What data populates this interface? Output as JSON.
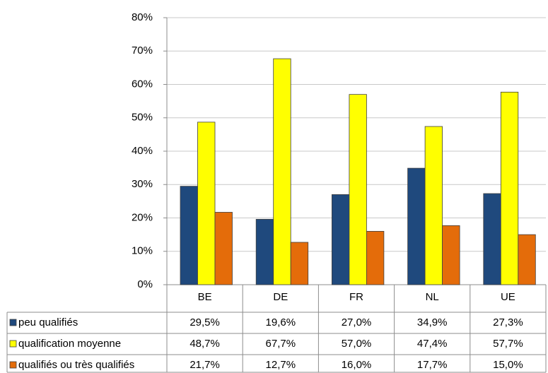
{
  "chart_data": {
    "type": "bar",
    "categories": [
      "BE",
      "DE",
      "FR",
      "NL",
      "UE"
    ],
    "series": [
      {
        "name": "peu qualifiés",
        "color": "#1f497d",
        "values": [
          29.5,
          19.6,
          27.0,
          34.9,
          27.3
        ],
        "value_labels": [
          "29,5%",
          "19,6%",
          "27,0%",
          "34,9%",
          "27,3%"
        ]
      },
      {
        "name": "qualification moyenne",
        "color": "#ffff00",
        "values": [
          48.7,
          67.7,
          57.0,
          47.4,
          57.7
        ],
        "value_labels": [
          "48,7%",
          "67,7%",
          "57,0%",
          "47,4%",
          "57,7%"
        ]
      },
      {
        "name": "qualifiés ou très qualifiés",
        "color": "#e46c0a",
        "values": [
          21.7,
          12.7,
          16.0,
          17.7,
          15.0
        ],
        "value_labels": [
          "21,7%",
          "12,7%",
          "16,0%",
          "17,7%",
          "15,0%"
        ]
      }
    ],
    "ylim": [
      0,
      80
    ],
    "yticks": [
      {
        "value": 0,
        "label": "0%"
      },
      {
        "value": 10,
        "label": "10%"
      },
      {
        "value": 20,
        "label": "20%"
      },
      {
        "value": 30,
        "label": "30%"
      },
      {
        "value": 40,
        "label": "40%"
      },
      {
        "value": 50,
        "label": "50%"
      },
      {
        "value": 60,
        "label": "60%"
      },
      {
        "value": 70,
        "label": "70%"
      },
      {
        "value": 80,
        "label": "80%"
      }
    ],
    "grid": true
  }
}
